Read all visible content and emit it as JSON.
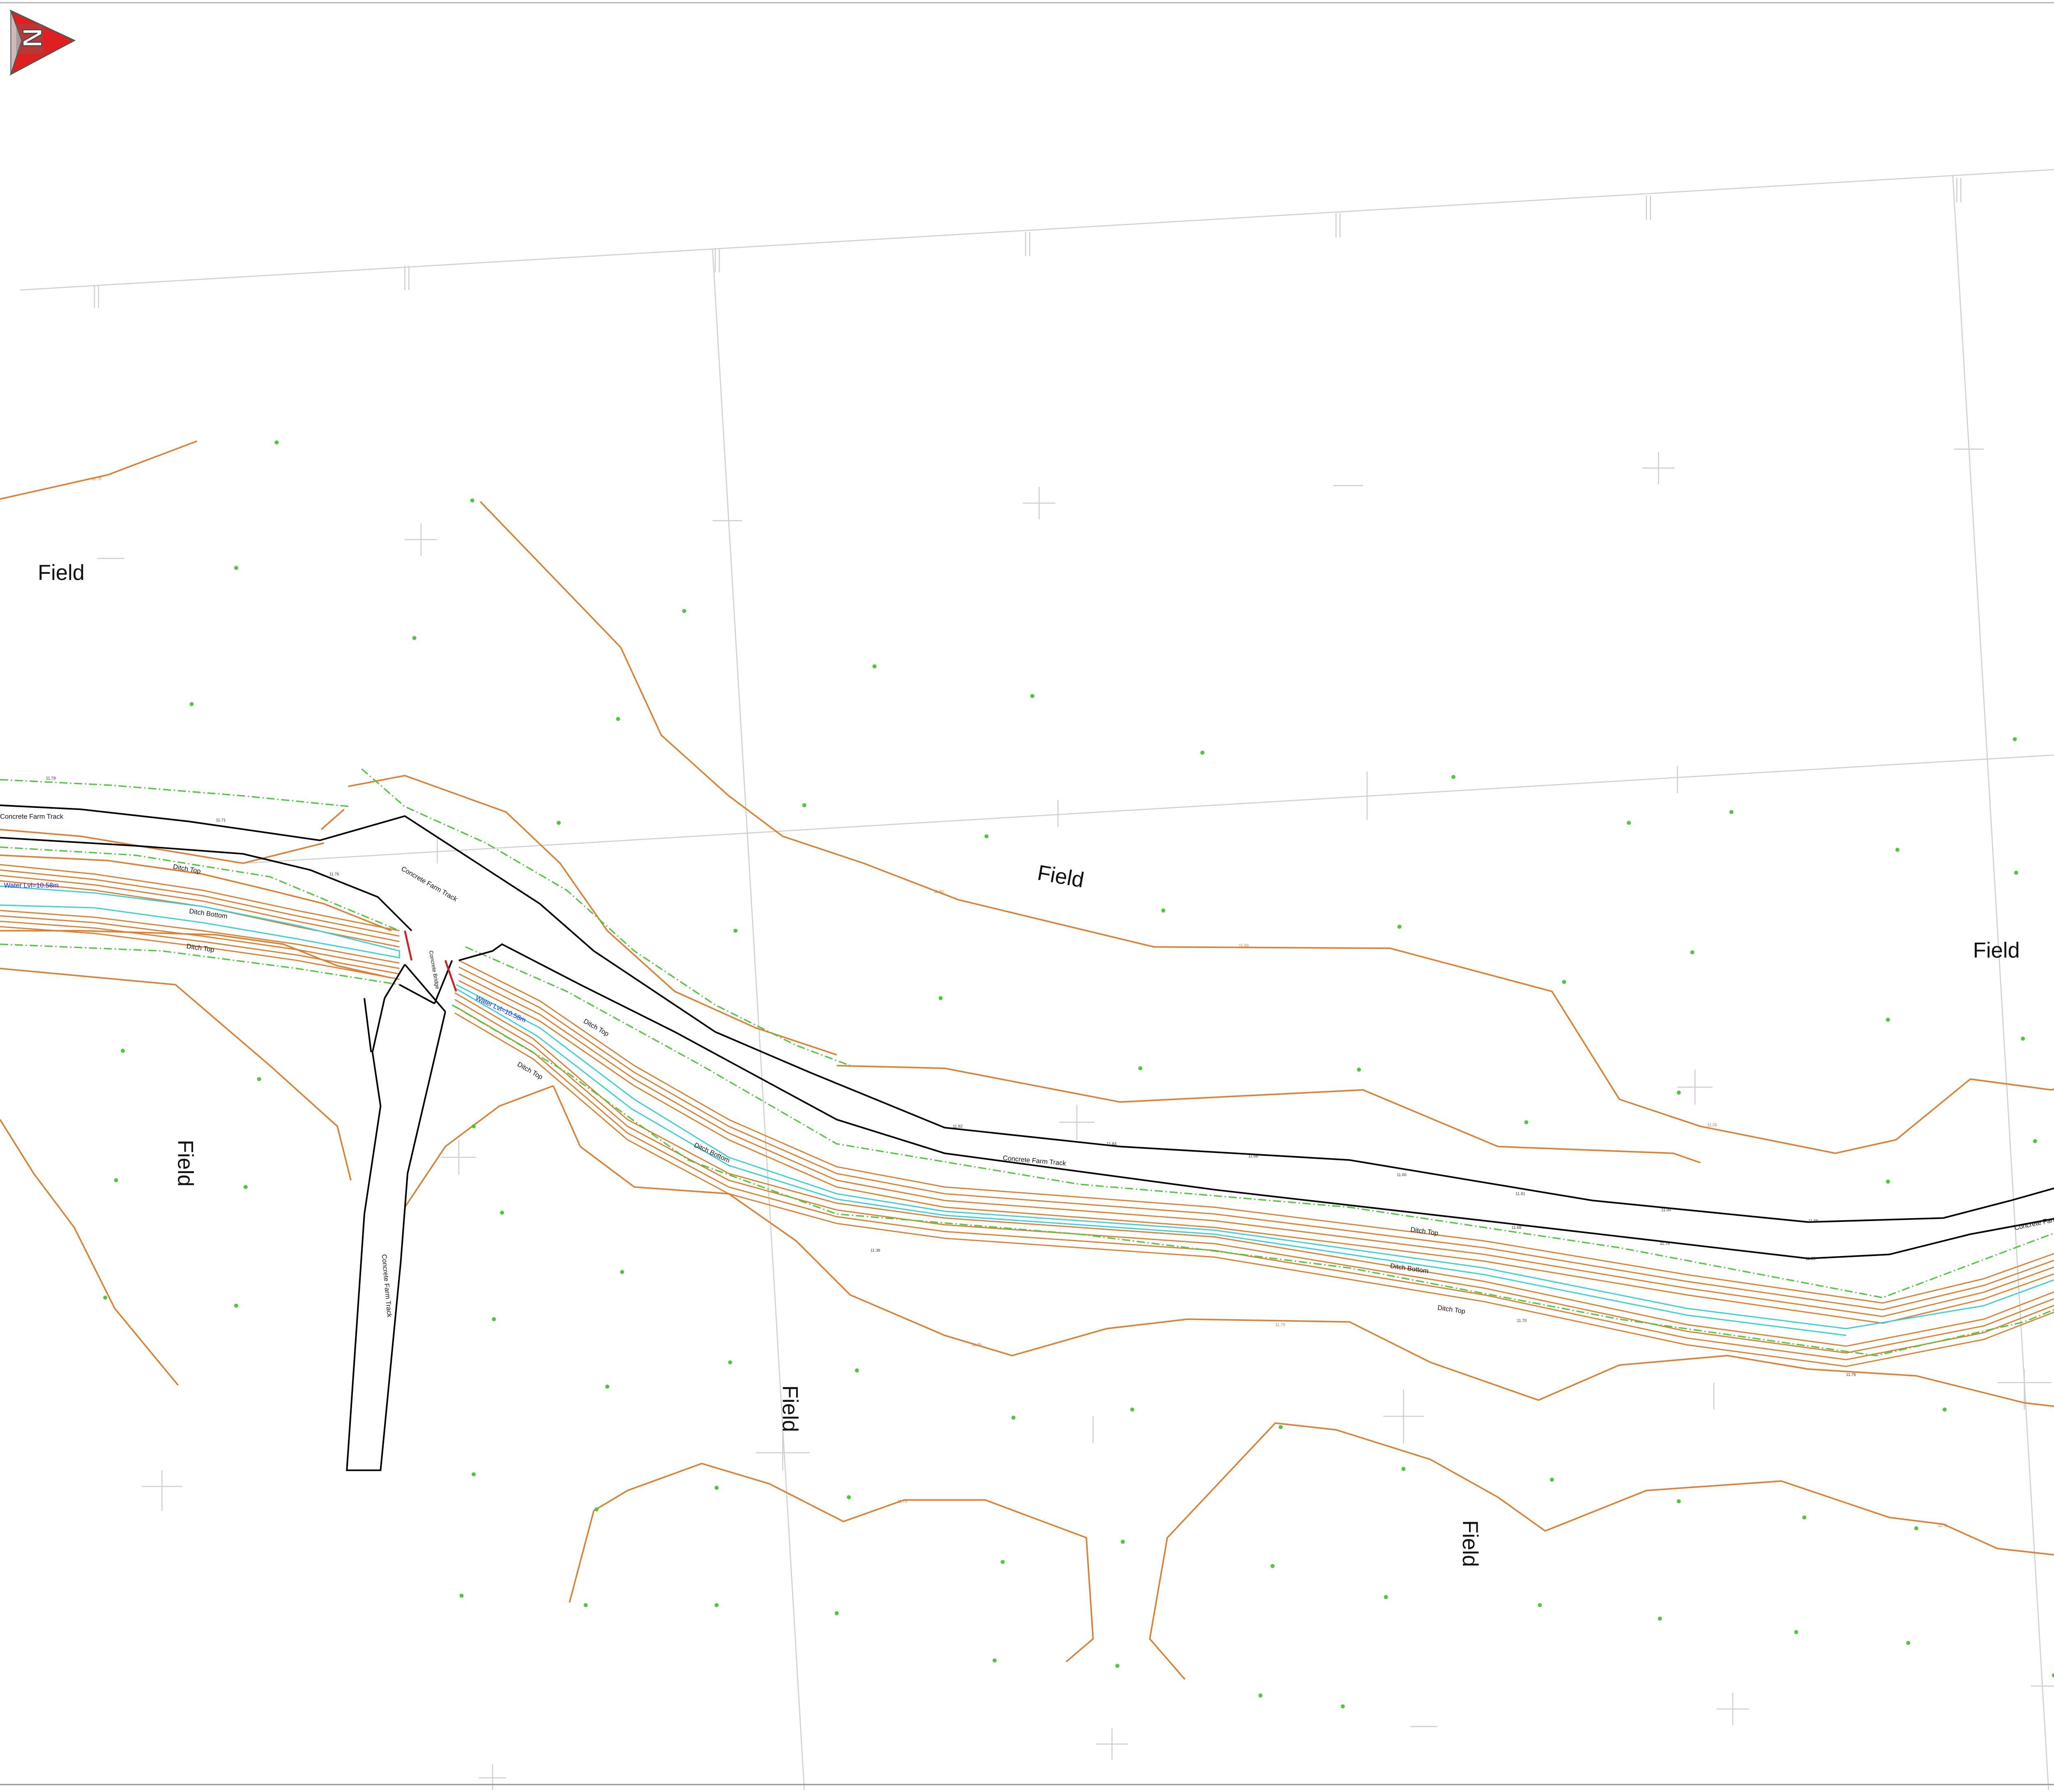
{
  "map": {
    "north_arrow": {
      "letter": "N"
    },
    "colors": {
      "contour": "#dd7f2e",
      "road": "#000000",
      "boundary_dash": "#4cc93a",
      "water": "#36d0d8",
      "grid": "#c8c8c8",
      "spot_height": "#4cc93a"
    },
    "labels": {
      "field": "Field",
      "concrete_farm_track": "Concrete Farm Track",
      "ditch_top": "Ditch Top",
      "ditch_bottom": "Ditch Bottom",
      "water_left": "Water Lvl=10.58m",
      "water_right": "Water Lvl=10.58m",
      "concrete_bridge": "Concrete Bridge"
    },
    "spot_heights": [
      "11.79",
      "11.71",
      "11.76",
      "11.82",
      "11.84",
      "11.66",
      "11.60",
      "11.81",
      "11.94",
      "11.69",
      "11.68",
      "11.76",
      "11.55",
      "11.70",
      "11.38",
      "11.76"
    ],
    "contour_values": [
      "11.75",
      "11.50",
      "11.25",
      "11.00",
      "10.75"
    ]
  },
  "footer": {
    "left": "",
    "right": ""
  }
}
